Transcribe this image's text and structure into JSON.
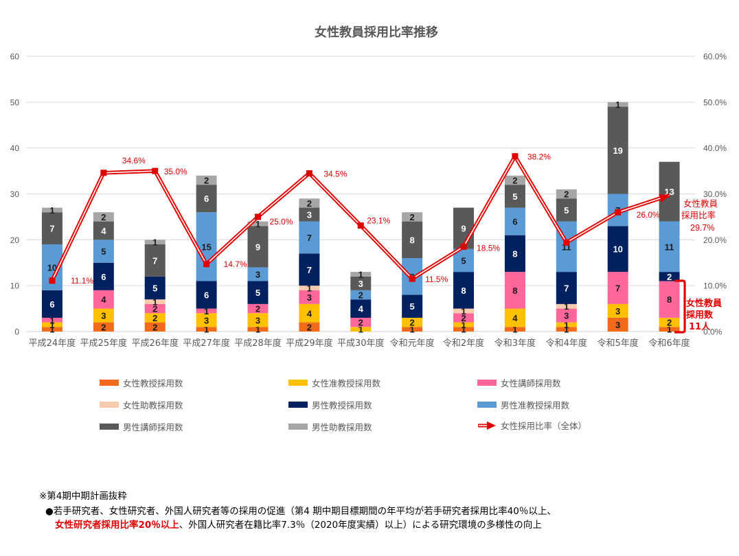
{
  "chart_data": {
    "type": "stacked-bar+line",
    "title": "女性教員採用比率推移",
    "categories": [
      "平成24年度",
      "平成25年度",
      "平成26年度",
      "平成27年度",
      "平成28年度",
      "平成29年度",
      "平成30年度",
      "令和元年度",
      "令和2年度",
      "令和3年度",
      "令和4年度",
      "令和5年度",
      "令和6年度"
    ],
    "y_left": {
      "min": 0,
      "max": 60,
      "ticks": [
        0,
        10,
        20,
        30,
        40,
        50,
        60
      ],
      "tick_labels": [
        "0",
        "10",
        "20",
        "30",
        "40",
        "50",
        "60"
      ]
    },
    "y_right": {
      "min": 0,
      "max": 60,
      "ticks": [
        0,
        10,
        20,
        30,
        40,
        50,
        60
      ],
      "tick_labels": [
        "0.0%",
        "10.0%",
        "20.0%",
        "30.0%",
        "40.0%",
        "50.0%",
        "60.0%"
      ]
    },
    "grid": true,
    "legend_position": "bottom",
    "series": [
      {
        "name": "女性教授採用数",
        "color": "#F26B1D",
        "label_color": "#1a1a1a",
        "values": [
          1,
          2,
          2,
          1,
          1,
          2,
          0,
          1,
          1,
          1,
          1,
          3,
          1
        ]
      },
      {
        "name": "女性准教授採用数",
        "color": "#FFC000",
        "label_color": "#1a1a1a",
        "values": [
          1,
          3,
          2,
          3,
          3,
          4,
          1,
          2,
          1,
          4,
          1,
          3,
          2
        ]
      },
      {
        "name": "女性講師採用数",
        "color": "#FF6699",
        "label_color": "#1a1a1a",
        "values": [
          1,
          4,
          2,
          1,
          2,
          3,
          2,
          0,
          2,
          8,
          3,
          7,
          8
        ]
      },
      {
        "name": "女性助教採用数",
        "color": "#F8CBAD",
        "label_color": "#1a1a1a",
        "values": [
          0,
          0,
          1,
          0,
          0,
          1,
          0,
          0,
          1,
          0,
          1,
          0,
          0
        ]
      },
      {
        "name": "男性教授採用数",
        "color": "#002060",
        "label_color": "#ffffff",
        "values": [
          6,
          6,
          5,
          6,
          5,
          7,
          4,
          5,
          8,
          8,
          7,
          10,
          2
        ]
      },
      {
        "name": "男性准教授採用数",
        "color": "#5B9BD5",
        "label_color": "#1a1a1a",
        "values": [
          10,
          5,
          0,
          15,
          3,
          7,
          2,
          8,
          5,
          6,
          11,
          7,
          11
        ]
      },
      {
        "name": "男性講師採用数",
        "color": "#595959",
        "label_color": "#ffffff",
        "values": [
          7,
          4,
          7,
          6,
          9,
          3,
          3,
          8,
          9,
          5,
          5,
          19,
          13
        ]
      },
      {
        "name": "男性助教採用数",
        "color": "#A6A6A6",
        "label_color": "#1a1a1a",
        "values": [
          1,
          2,
          1,
          2,
          1,
          2,
          1,
          2,
          0,
          2,
          2,
          1,
          0
        ]
      }
    ],
    "line": {
      "name": "女性採用比率（全体）",
      "color": "#E00000",
      "axis": "right",
      "values": [
        11.1,
        34.6,
        35.0,
        14.7,
        25.0,
        34.5,
        23.1,
        11.5,
        18.5,
        38.2,
        19.4,
        26.0,
        29.7
      ],
      "labels": [
        "11.1%",
        "34.6%",
        "35.0%",
        "14.7%",
        "25.0%",
        "34.5%",
        "23.1%",
        "11.5%",
        "18.5%",
        "38.2%",
        null,
        "26.0%",
        null
      ]
    },
    "annotations": {
      "ratio_label_lines": [
        "女性教員",
        "採用比率"
      ],
      "ratio_value": "29.7%",
      "count_label_lines": [
        "女性教員",
        "採用数",
        "11人"
      ],
      "accent_color": "#E00000"
    }
  },
  "footnote": {
    "heading": "※第4期中期計画抜粋",
    "line1": "●若手研究者、女性研究者、外国人研究者等の採用の促進（第4 期中期目標期間の年平均が若手研究者採用比率40％以上、",
    "line2_highlight": "女性研究者採用比率20％以上",
    "line2_rest": "、外国人研究者在籍比率7.3％（2020年度実績）以上）による研究環境の多様性の向上"
  }
}
